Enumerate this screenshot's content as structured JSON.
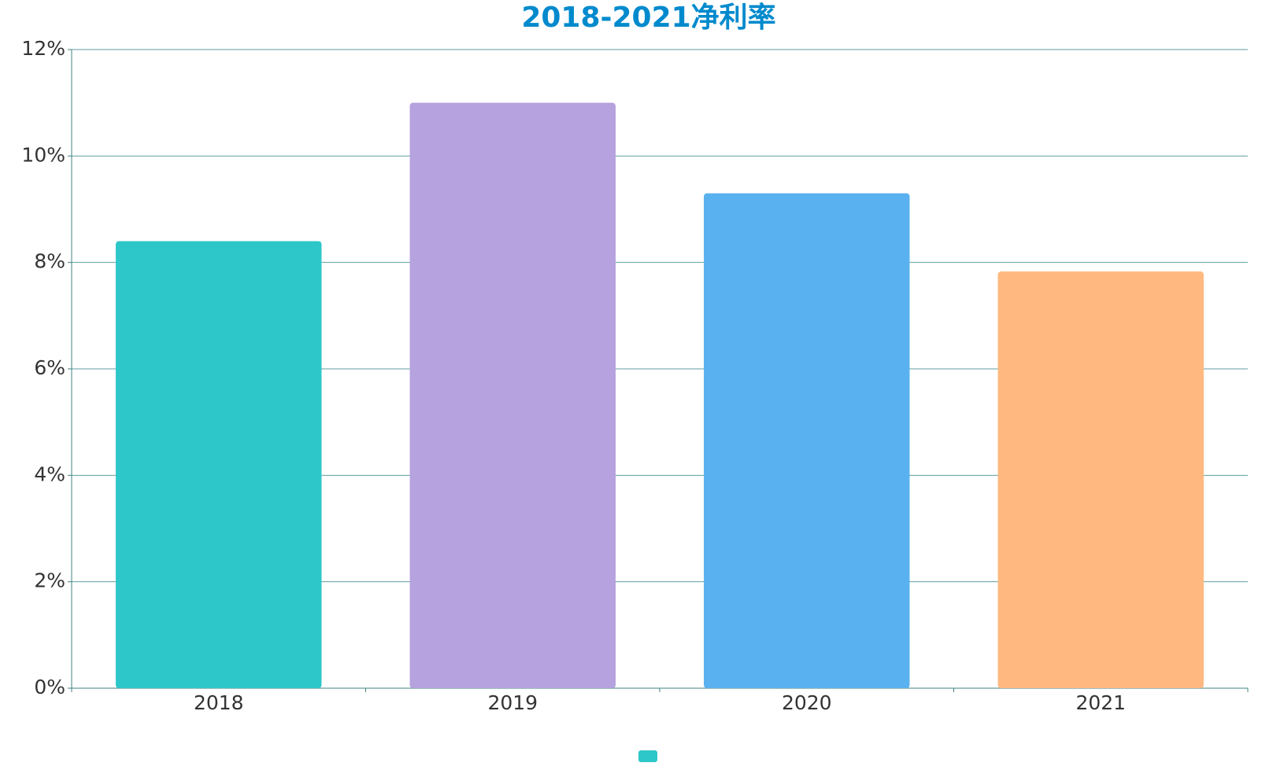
{
  "chart_data": {
    "type": "bar",
    "title": "2018-2021净利率",
    "categories": [
      "2018",
      "2019",
      "2020",
      "2021"
    ],
    "values": [
      8.4,
      11.0,
      9.3,
      7.83
    ],
    "colors": [
      "#2ec7c9",
      "#b6a2de",
      "#5ab1ef",
      "#ffb980"
    ],
    "ylim": [
      0,
      12
    ],
    "yticks": [
      {
        "value": 0,
        "label": "0%"
      },
      {
        "value": 2,
        "label": "2%"
      },
      {
        "value": 4,
        "label": "4%"
      },
      {
        "value": 6,
        "label": "6%"
      },
      {
        "value": 8,
        "label": "8%"
      },
      {
        "value": 10,
        "label": "10%"
      },
      {
        "value": 12,
        "label": "12%"
      }
    ],
    "grid": true
  }
}
